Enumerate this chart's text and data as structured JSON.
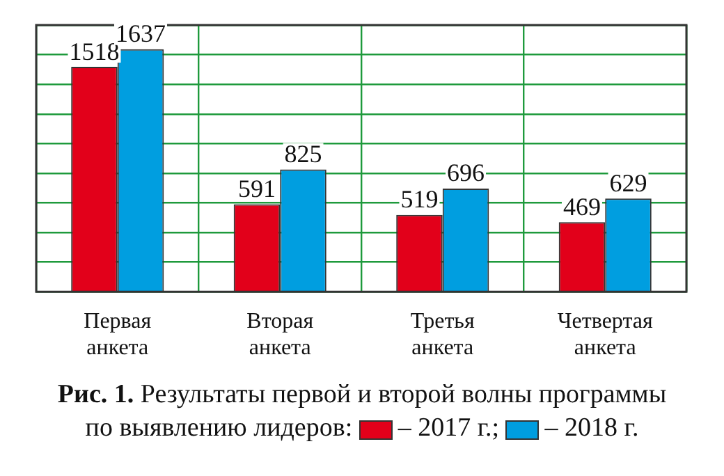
{
  "chart_data": {
    "type": "bar",
    "title": "Рис. 1. Результаты первой  и второй волны программы по выявлению лидеров:",
    "categories": [
      "Первая анкета",
      "Вторая анкета",
      "Третья анкета",
      "Четвертая анкета"
    ],
    "series": [
      {
        "name": "– 2017 г.;",
        "color": "#e2001a",
        "values": [
          1518,
          591,
          519,
          469
        ]
      },
      {
        "name": "– 2018 г.",
        "color": "#009ee0",
        "values": [
          1637,
          825,
          696,
          629
        ]
      }
    ],
    "ylim": [
      0,
      1800
    ],
    "yticks": [
      {
        "value": 0,
        "label": null
      },
      {
        "value": 200,
        "label": null
      },
      {
        "value": 400,
        "label": null
      },
      {
        "value": 600,
        "label": null
      },
      {
        "value": 800,
        "label": null
      },
      {
        "value": 1000,
        "label": null
      },
      {
        "value": 1200,
        "label": null
      },
      {
        "value": 1400,
        "label": null
      },
      {
        "value": 1600,
        "label": null
      },
      {
        "value": 1800,
        "label": null
      }
    ],
    "tick_labels": "x",
    "grid": true,
    "legend": "bottom",
    "data_labels": true
  }
}
